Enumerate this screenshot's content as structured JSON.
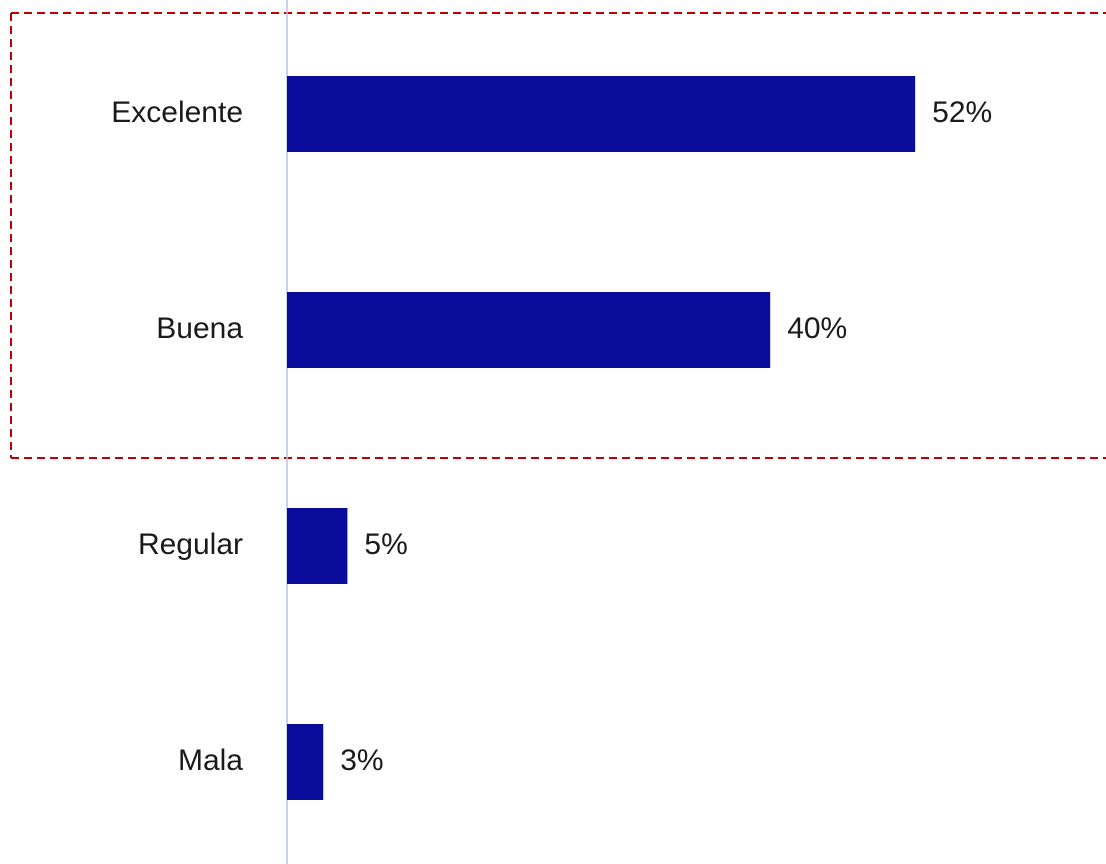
{
  "chart_data": {
    "type": "barh",
    "categories": [
      "Excelente",
      "Buena",
      "Regular",
      "Mala"
    ],
    "values": [
      52,
      40,
      5,
      3
    ],
    "value_labels": [
      "52%",
      "40%",
      "5%",
      "3%"
    ],
    "color": "#0a0d9c"
  }
}
